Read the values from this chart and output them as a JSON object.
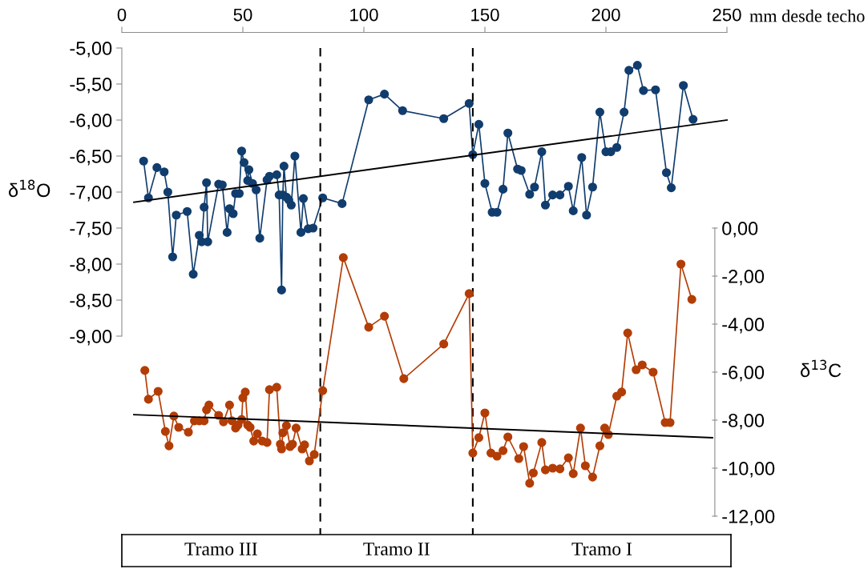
{
  "chart_data": {
    "type": "line",
    "xlabel": "mm desde techo",
    "ylabel": "δ$^{18}$O",
    "y2label": "δ$^{13}$C",
    "xlim": [
      0,
      250
    ],
    "xticks": [
      0,
      50,
      100,
      150,
      200,
      250
    ],
    "ylim": [
      -11.5,
      -5
    ],
    "yticks": [
      {
        "value": -5,
        "label": "-5,00"
      },
      {
        "value": -5.5,
        "label": "-5,50"
      },
      {
        "value": -6,
        "label": "-6,00"
      },
      {
        "value": -6.5,
        "label": "-6,50"
      },
      {
        "value": -7,
        "label": "-7,00"
      },
      {
        "value": -7.5,
        "label": "-7,50"
      },
      {
        "value": -8,
        "label": "-8,00"
      },
      {
        "value": -8.5,
        "label": "-8,50"
      },
      {
        "value": -9,
        "label": "-9,00"
      }
    ],
    "y2lim": [
      -12,
      7.5
    ],
    "y2ticks": [
      {
        "value": 0,
        "label": "0,00"
      },
      {
        "value": -2,
        "label": "-2,00"
      },
      {
        "value": -4,
        "label": "-4,00"
      },
      {
        "value": -6,
        "label": "-6,00"
      },
      {
        "value": -8,
        "label": "-8,00"
      },
      {
        "value": -10,
        "label": "-10,00"
      },
      {
        "value": -12,
        "label": "-12,00"
      }
    ],
    "grid": false,
    "legend": false,
    "line_style": "solid",
    "series": [
      {
        "color": "#113d6e",
        "marker": "circle",
        "x": [
          9,
          11,
          14.5,
          17.5,
          19,
          21,
          22.5,
          27,
          29.5,
          32,
          33,
          34,
          35,
          35.5,
          40,
          41.5,
          43.5,
          44.5,
          46,
          47,
          48.5,
          49.5,
          50.5,
          52,
          52.5,
          54,
          55.5,
          57,
          60,
          61,
          64,
          65,
          66,
          66.5,
          67,
          68,
          69,
          70,
          71.5,
          74,
          75,
          77,
          79,
          83,
          91,
          102,
          108.5,
          116,
          133,
          143.5,
          145,
          147.5,
          150,
          153,
          155,
          157.5,
          159.5,
          163.5,
          165,
          168.5,
          170.5,
          173.5,
          175,
          178,
          181,
          184.5,
          186.5,
          190,
          192,
          194.5,
          197.5,
          200,
          202,
          204.5,
          207.5,
          209.5,
          213,
          215.5,
          220.5,
          225,
          227,
          232,
          236
        ],
        "values": [
          -6.57,
          -7.08,
          -6.66,
          -6.72,
          -7.0,
          -7.9,
          -7.32,
          -7.27,
          -8.14,
          -7.6,
          -7.69,
          -7.21,
          -6.87,
          -7.69,
          -6.89,
          -6.9,
          -7.56,
          -7.23,
          -7.3,
          -7.02,
          -7.02,
          -6.43,
          -6.59,
          -6.84,
          -6.69,
          -6.88,
          -6.97,
          -7.64,
          -6.83,
          -6.78,
          -6.76,
          -7.04,
          -8.36,
          -7.04,
          -6.64,
          -7.07,
          -7.11,
          -7.18,
          -6.5,
          -7.56,
          -7.09,
          -7.51,
          -7.5,
          -7.08,
          -7.16,
          -5.72,
          -5.64,
          -5.87,
          -5.98,
          -5.77,
          -6.48,
          -6.06,
          -6.88,
          -7.28,
          -7.28,
          -6.96,
          -6.18,
          -6.68,
          -6.7,
          -7.03,
          -6.93,
          -6.44,
          -7.18,
          -7.04,
          -7.04,
          -6.92,
          -7.26,
          -6.52,
          -7.32,
          -6.93,
          -5.89,
          -6.44,
          -6.44,
          -6.38,
          -5.89,
          -5.31,
          -5.24,
          -5.59,
          -5.58,
          -6.73,
          -6.94,
          -5.52,
          -5.99
        ]
      },
      {
        "color": "#000000",
        "marker": "none",
        "x": [
          5,
          250
        ],
        "values": [
          -7.14,
          -6.0
        ]
      },
      {
        "color": "#b33d06",
        "marker": "circle",
        "axis": "y2",
        "x": [
          9.5,
          11,
          15,
          18,
          19.5,
          21.5,
          23.5,
          27.5,
          30,
          32,
          34,
          35,
          36,
          40,
          42,
          44.5,
          45.5,
          47,
          48,
          49.5,
          50,
          51,
          52,
          53,
          54.5,
          56,
          58,
          60,
          61,
          64,
          65.5,
          66,
          66.5,
          68,
          69.5,
          70.5,
          72,
          74.5,
          75.5,
          77.5,
          79.5,
          83,
          91.5,
          102,
          108.5,
          116.5,
          133,
          143.5,
          145,
          147.5,
          150,
          152.5,
          155,
          157.5,
          159.5,
          164,
          166,
          168.5,
          170,
          173.5,
          175,
          178,
          181,
          184.5,
          186.5,
          189.5,
          191.5,
          194.5,
          197.5,
          199.5,
          201,
          204.5,
          206.5,
          209,
          212.5,
          215,
          219.5,
          224.5,
          226.5,
          231,
          235.5
        ],
        "values": [
          -5.93,
          -7.13,
          -6.8,
          -8.47,
          -9.07,
          -7.83,
          -8.3,
          -8.5,
          -8.03,
          -8.03,
          -8.03,
          -7.57,
          -7.37,
          -7.8,
          -8.07,
          -7.37,
          -8.03,
          -8.33,
          -8.2,
          -7.97,
          -7.07,
          -6.83,
          -8.2,
          -8.3,
          -8.87,
          -8.57,
          -8.87,
          -8.93,
          -6.73,
          -6.63,
          -9.0,
          -9.2,
          -8.53,
          -8.23,
          -9.1,
          -9.0,
          -8.33,
          -9.2,
          -9.03,
          -9.7,
          -9.43,
          -6.77,
          -1.23,
          -4.13,
          -3.67,
          -6.27,
          -4.83,
          -2.73,
          -9.37,
          -8.73,
          -7.7,
          -9.37,
          -9.5,
          -9.27,
          -8.7,
          -9.6,
          -9.1,
          -10.63,
          -10.2,
          -8.93,
          -10.07,
          -10.0,
          -10.03,
          -9.57,
          -10.23,
          -8.33,
          -9.9,
          -10.37,
          -9.07,
          -8.33,
          -8.6,
          -7.0,
          -6.83,
          -4.37,
          -5.9,
          -5.7,
          -6.0,
          -8.1,
          -8.1,
          -1.5,
          -2.97
        ]
      },
      {
        "color": "#000000",
        "marker": "none",
        "axis": "y2",
        "x": [
          5,
          244
        ],
        "values": [
          -7.77,
          -8.73
        ]
      }
    ],
    "ref_lines": [
      {
        "axis": "x",
        "value": 82,
        "color": "#000000",
        "line_style": "dashed"
      },
      {
        "axis": "x",
        "value": 145,
        "color": "#000000",
        "line_style": "dashed"
      }
    ],
    "annotations": [
      "Tramo III",
      "Tramo II",
      "Tramo I"
    ]
  }
}
